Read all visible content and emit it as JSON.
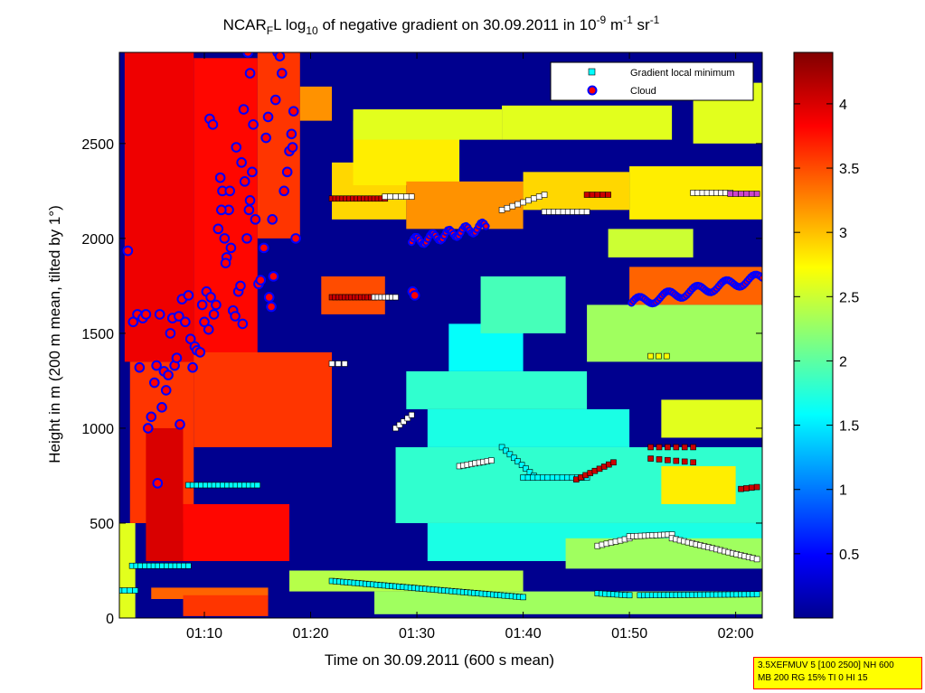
{
  "info_box": {
    "line1": "3.5XEFMUV 5 [100 2500] NH 600",
    "line2": "MB 200 RG 15% TI 0 HI 15"
  },
  "chart_data": {
    "type": "heatmap",
    "title_parts": {
      "main": "NCAR",
      "sub1": "F",
      "mid": "L log",
      "sub2": "10",
      "rest": " of negative gradient on 30.09.2011 in 10",
      "sup1": "-9",
      "unit": " m",
      "sup2": "-1",
      "unit2": " sr",
      "sup3": "-1"
    },
    "xlabel": "Time on 30.09.2011 (600 s mean)",
    "ylabel": "Height in m (200 m mean, tilted by 1°)",
    "xlim_minutes": [
      62,
      122.5
    ],
    "ylim": [
      0,
      2980
    ],
    "x_ticks": [
      {
        "minute": 70,
        "label": "01:10"
      },
      {
        "minute": 80,
        "label": "01:20"
      },
      {
        "minute": 90,
        "label": "01:30"
      },
      {
        "minute": 100,
        "label": "01:40"
      },
      {
        "minute": 110,
        "label": "01:50"
      },
      {
        "minute": 120,
        "label": "02:00"
      }
    ],
    "y_ticks": [
      0,
      500,
      1000,
      1500,
      2000,
      2500
    ],
    "colorbar": {
      "range": [
        0,
        4.4
      ],
      "ticks": [
        0.5,
        1,
        1.5,
        2,
        2.5,
        3,
        3.5,
        4
      ],
      "colormap": "jet"
    },
    "legend": {
      "placement": "top-right",
      "entries": [
        {
          "label": "Gradient local minimum",
          "marker": "square",
          "color": "#00ffff"
        },
        {
          "label": "Cloud",
          "marker": "circle",
          "color": "#ff0000",
          "edge": "#0000ff"
        }
      ]
    },
    "background_value": 0,
    "field_blobs": [
      {
        "t0": 62,
        "t1": 63.5,
        "h0": 0,
        "h1": 500,
        "v": 2.6
      },
      {
        "t0": 62.5,
        "t1": 69,
        "h0": 1350,
        "h1": 2980,
        "v": 3.9
      },
      {
        "t0": 63,
        "t1": 69,
        "h0": 500,
        "h1": 1350,
        "v": 3.6
      },
      {
        "t0": 69,
        "t1": 75,
        "h0": 1200,
        "h1": 2950,
        "v": 3.8
      },
      {
        "t0": 75,
        "t1": 79,
        "h0": 2000,
        "h1": 2980,
        "v": 3.6
      },
      {
        "t0": 64.5,
        "t1": 68,
        "h0": 300,
        "h1": 1000,
        "v": 4.0
      },
      {
        "t0": 68,
        "t1": 78,
        "h0": 300,
        "h1": 600,
        "v": 3.8
      },
      {
        "t0": 69,
        "t1": 82,
        "h0": 900,
        "h1": 1400,
        "v": 3.6
      },
      {
        "t0": 65,
        "t1": 76,
        "h0": 100,
        "h1": 160,
        "v": 3.4
      },
      {
        "t0": 79,
        "t1": 82,
        "h0": 2620,
        "h1": 2800,
        "v": 3.2
      },
      {
        "t0": 81,
        "t1": 87,
        "h0": 1600,
        "h1": 1800,
        "v": 3.5
      },
      {
        "t0": 82,
        "t1": 89,
        "h0": 2100,
        "h1": 2400,
        "v": 2.9
      },
      {
        "t0": 84,
        "t1": 94,
        "h0": 2280,
        "h1": 2620,
        "v": 2.8
      },
      {
        "t0": 84,
        "t1": 98,
        "h0": 2520,
        "h1": 2680,
        "v": 2.6
      },
      {
        "t0": 98,
        "t1": 114,
        "h0": 2520,
        "h1": 2700,
        "v": 2.6
      },
      {
        "t0": 89,
        "t1": 100,
        "h0": 2050,
        "h1": 2300,
        "v": 3.2
      },
      {
        "t0": 100,
        "t1": 110,
        "h0": 2150,
        "h1": 2350,
        "v": 2.9
      },
      {
        "t0": 110,
        "t1": 122.5,
        "h0": 2100,
        "h1": 2380,
        "v": 2.8
      },
      {
        "t0": 116,
        "t1": 122.5,
        "h0": 2500,
        "h1": 2820,
        "v": 2.6
      },
      {
        "t0": 108,
        "t1": 116,
        "h0": 1900,
        "h1": 2050,
        "v": 2.5
      },
      {
        "t0": 110,
        "t1": 122.5,
        "h0": 1650,
        "h1": 1850,
        "v": 3.4
      },
      {
        "t0": 106,
        "t1": 122.5,
        "h0": 1350,
        "h1": 1650,
        "v": 2.3
      },
      {
        "t0": 89,
        "t1": 106,
        "h0": 1100,
        "h1": 1300,
        "v": 1.8
      },
      {
        "t0": 91,
        "t1": 110,
        "h0": 900,
        "h1": 1100,
        "v": 1.7
      },
      {
        "t0": 93,
        "t1": 100,
        "h0": 1300,
        "h1": 1550,
        "v": 1.6
      },
      {
        "t0": 96,
        "t1": 104,
        "h0": 1500,
        "h1": 1800,
        "v": 1.9
      },
      {
        "t0": 88,
        "t1": 122.5,
        "h0": 500,
        "h1": 900,
        "v": 1.8
      },
      {
        "t0": 91,
        "t1": 122.5,
        "h0": 300,
        "h1": 500,
        "v": 1.7
      },
      {
        "t0": 104,
        "t1": 122.5,
        "h0": 260,
        "h1": 420,
        "v": 2.3
      },
      {
        "t0": 78,
        "t1": 100,
        "h0": 140,
        "h1": 250,
        "v": 2.4
      },
      {
        "t0": 68,
        "t1": 76,
        "h0": 10,
        "h1": 120,
        "v": 3.6
      },
      {
        "t0": 86,
        "t1": 122.5,
        "h0": 20,
        "h1": 140,
        "v": 2.3
      },
      {
        "t0": 113,
        "t1": 120,
        "h0": 600,
        "h1": 800,
        "v": 2.8
      },
      {
        "t0": 113,
        "t1": 122.5,
        "h0": 950,
        "h1": 1150,
        "v": 2.6
      }
    ],
    "series": [
      {
        "name": "Gradient local minimum",
        "groups": [
          {
            "t0": 62,
            "t1": 63.5,
            "h0": 145,
            "h1": 145,
            "n": 4,
            "color": "#00ffff"
          },
          {
            "t0": 63.2,
            "t1": 68.5,
            "h0": 275,
            "h1": 275,
            "n": 14,
            "color": "#00ffff"
          },
          {
            "t0": 68.5,
            "t1": 75,
            "h0": 700,
            "h1": 700,
            "n": 17,
            "color": "#00ffff"
          },
          {
            "t0": 82,
            "t1": 87,
            "h0": 2210,
            "h1": 2210,
            "n": 16,
            "color": "#cc0000"
          },
          {
            "t0": 87,
            "t1": 89.5,
            "h0": 2220,
            "h1": 2220,
            "n": 6,
            "color": "#ffffff"
          },
          {
            "t0": 82,
            "t1": 86,
            "h0": 1690,
            "h1": 1690,
            "n": 14,
            "color": "#cc0000"
          },
          {
            "t0": 86,
            "t1": 88,
            "h0": 1690,
            "h1": 1690,
            "n": 7,
            "color": "#ffffff"
          },
          {
            "t0": 82,
            "t1": 83.2,
            "h0": 1340,
            "h1": 1340,
            "n": 3,
            "color": "#ffffff"
          },
          {
            "t0": 82,
            "t1": 100,
            "h0": 195,
            "h1": 110,
            "n": 52,
            "color": "#00ffff"
          },
          {
            "t0": 88,
            "t1": 89.5,
            "h0": 1000,
            "h1": 1070,
            "n": 5,
            "color": "#ffffff"
          },
          {
            "t0": 94,
            "t1": 97,
            "h0": 800,
            "h1": 830,
            "n": 9,
            "color": "#ffffff"
          },
          {
            "t0": 98,
            "t1": 101,
            "h0": 900,
            "h1": 750,
            "n": 9,
            "color": "#00ffff"
          },
          {
            "t0": 100,
            "t1": 106,
            "h0": 740,
            "h1": 740,
            "n": 14,
            "color": "#00ffff"
          },
          {
            "t0": 105,
            "t1": 108.5,
            "h0": 730,
            "h1": 820,
            "n": 9,
            "color": "#cc0000"
          },
          {
            "t0": 98,
            "t1": 102,
            "h0": 2150,
            "h1": 2230,
            "n": 9,
            "color": "#ffffff"
          },
          {
            "t0": 102,
            "t1": 106,
            "h0": 2140,
            "h1": 2140,
            "n": 10,
            "color": "#ffffff"
          },
          {
            "t0": 106,
            "t1": 108,
            "h0": 2230,
            "h1": 2230,
            "n": 5,
            "color": "#cc0000"
          },
          {
            "t0": 107,
            "t1": 110,
            "h0": 380,
            "h1": 420,
            "n": 8,
            "color": "#ffffff"
          },
          {
            "t0": 110,
            "t1": 114,
            "h0": 430,
            "h1": 440,
            "n": 12,
            "color": "#ffffff"
          },
          {
            "t0": 114,
            "t1": 122,
            "h0": 420,
            "h1": 310,
            "n": 22,
            "color": "#ffffff"
          },
          {
            "t0": 107,
            "t1": 110,
            "h0": 130,
            "h1": 120,
            "n": 9,
            "color": "#00ffff"
          },
          {
            "t0": 111,
            "t1": 122,
            "h0": 120,
            "h1": 125,
            "n": 30,
            "color": "#00ffff"
          },
          {
            "t0": 116,
            "t1": 119.5,
            "h0": 2240,
            "h1": 2240,
            "n": 9,
            "color": "#ffffff"
          },
          {
            "t0": 119.5,
            "t1": 122,
            "h0": 2235,
            "h1": 2235,
            "n": 6,
            "color": "#cc44cc"
          },
          {
            "t0": 120.5,
            "t1": 122,
            "h0": 680,
            "h1": 690,
            "n": 4,
            "color": "#cc0000"
          },
          {
            "t0": 112,
            "t1": 116,
            "h0": 900,
            "h1": 900,
            "n": 6,
            "color": "#cc0000"
          },
          {
            "t0": 112,
            "t1": 116,
            "h0": 840,
            "h1": 820,
            "n": 6,
            "color": "#cc0000"
          },
          {
            "t0": 112,
            "t1": 113.5,
            "h0": 1380,
            "h1": 1380,
            "n": 3,
            "color": "#ffff00"
          }
        ]
      },
      {
        "name": "Cloud",
        "band_groups": [
          {
            "t0": 89.5,
            "t1": 96.5,
            "h0": 1980,
            "h1": 2120,
            "n": 42
          },
          {
            "t0": 110.2,
            "t1": 122.5,
            "h0": 1660,
            "h1": 1880,
            "n": 70
          }
        ],
        "points": [
          [
            62.8,
            1935
          ],
          [
            63.3,
            1560
          ],
          [
            63.7,
            1600
          ],
          [
            63.9,
            1320
          ],
          [
            64.2,
            1580
          ],
          [
            64.5,
            1600
          ],
          [
            64.7,
            1000
          ],
          [
            65.0,
            1060
          ],
          [
            65.3,
            1240
          ],
          [
            65.5,
            1330
          ],
          [
            65.6,
            710
          ],
          [
            65.8,
            1600
          ],
          [
            66.0,
            1110
          ],
          [
            66.2,
            1300
          ],
          [
            66.4,
            1200
          ],
          [
            66.6,
            1280
          ],
          [
            66.8,
            1500
          ],
          [
            67.0,
            1580
          ],
          [
            67.2,
            1330
          ],
          [
            67.4,
            1370
          ],
          [
            67.6,
            1590
          ],
          [
            67.7,
            1020
          ],
          [
            67.9,
            1680
          ],
          [
            68.2,
            1560
          ],
          [
            68.5,
            1700
          ],
          [
            68.7,
            1470
          ],
          [
            68.9,
            1320
          ],
          [
            69.1,
            1430
          ],
          [
            69.3,
            1410
          ],
          [
            69.6,
            1400
          ],
          [
            69.8,
            1650
          ],
          [
            70.0,
            1560
          ],
          [
            70.2,
            1720
          ],
          [
            70.4,
            1520
          ],
          [
            70.6,
            1690
          ],
          [
            70.9,
            1600
          ],
          [
            71.1,
            1650
          ],
          [
            71.3,
            2050
          ],
          [
            71.5,
            2320
          ],
          [
            71.7,
            2250
          ],
          [
            71.9,
            2000
          ],
          [
            72.1,
            1900
          ],
          [
            72.3,
            2150
          ],
          [
            72.5,
            1950
          ],
          [
            72.7,
            1620
          ],
          [
            72.9,
            1590
          ],
          [
            73.2,
            1720
          ],
          [
            73.4,
            1750
          ],
          [
            73.6,
            1550
          ],
          [
            73.8,
            2300
          ],
          [
            74.0,
            2000
          ],
          [
            74.2,
            2150
          ],
          [
            74.5,
            2350
          ],
          [
            70.5,
            2630
          ],
          [
            70.8,
            2600
          ],
          [
            71.6,
            2150
          ],
          [
            72.0,
            1870
          ],
          [
            72.4,
            2250
          ],
          [
            73.0,
            2480
          ],
          [
            73.5,
            2400
          ],
          [
            73.7,
            2680
          ],
          [
            74.1,
            2980
          ],
          [
            74.3,
            2870
          ],
          [
            74.6,
            2600
          ],
          [
            74.8,
            2100
          ],
          [
            75.1,
            1760
          ],
          [
            75.3,
            1780
          ],
          [
            75.6,
            1950
          ],
          [
            75.8,
            2530
          ],
          [
            76.0,
            2640
          ],
          [
            76.1,
            1690
          ],
          [
            76.3,
            1640
          ],
          [
            76.5,
            1800
          ],
          [
            76.7,
            2730
          ],
          [
            76.9,
            2980
          ],
          [
            77.1,
            2960
          ],
          [
            77.3,
            2870
          ],
          [
            77.5,
            2250
          ],
          [
            77.8,
            2350
          ],
          [
            78.0,
            2460
          ],
          [
            78.2,
            2550
          ],
          [
            78.4,
            2670
          ],
          [
            78.6,
            2000
          ],
          [
            74.3,
            2200
          ],
          [
            76.4,
            2100
          ],
          [
            78.3,
            2480
          ],
          [
            89.6,
            1720
          ],
          [
            89.8,
            1700
          ]
        ]
      }
    ]
  }
}
